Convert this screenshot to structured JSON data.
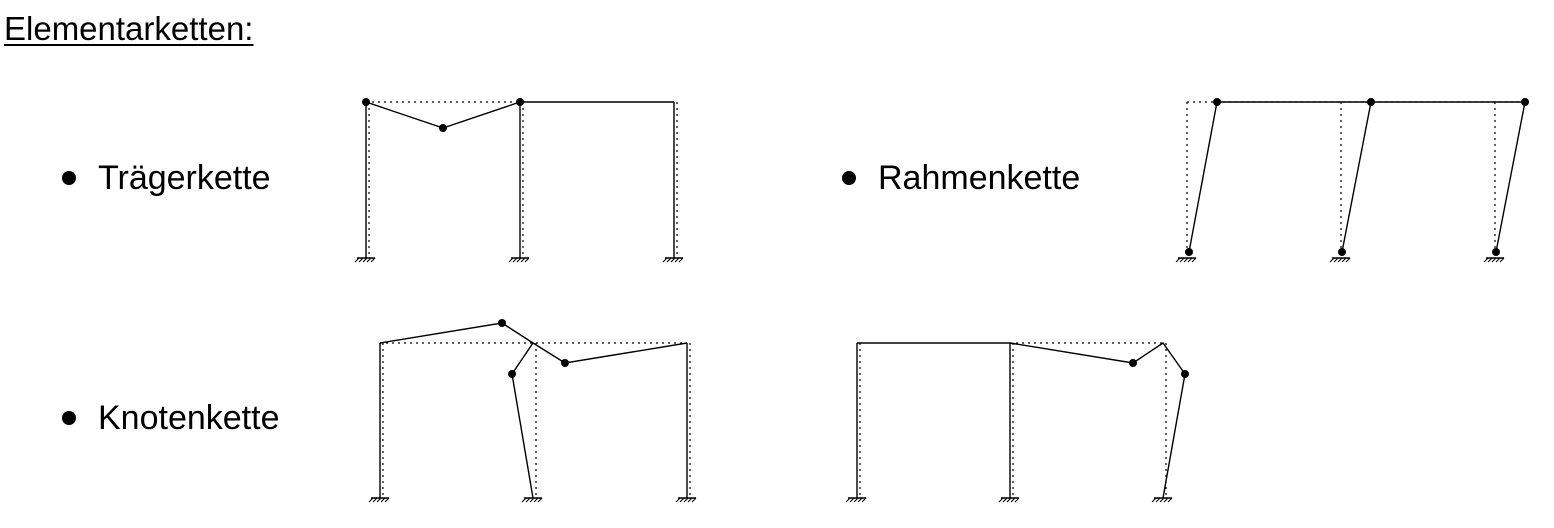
{
  "heading": "Elementarketten:",
  "items": [
    {
      "label": "Trägerkette"
    },
    {
      "label": "Rahmenkette"
    },
    {
      "label": "Knotenkette"
    }
  ]
}
